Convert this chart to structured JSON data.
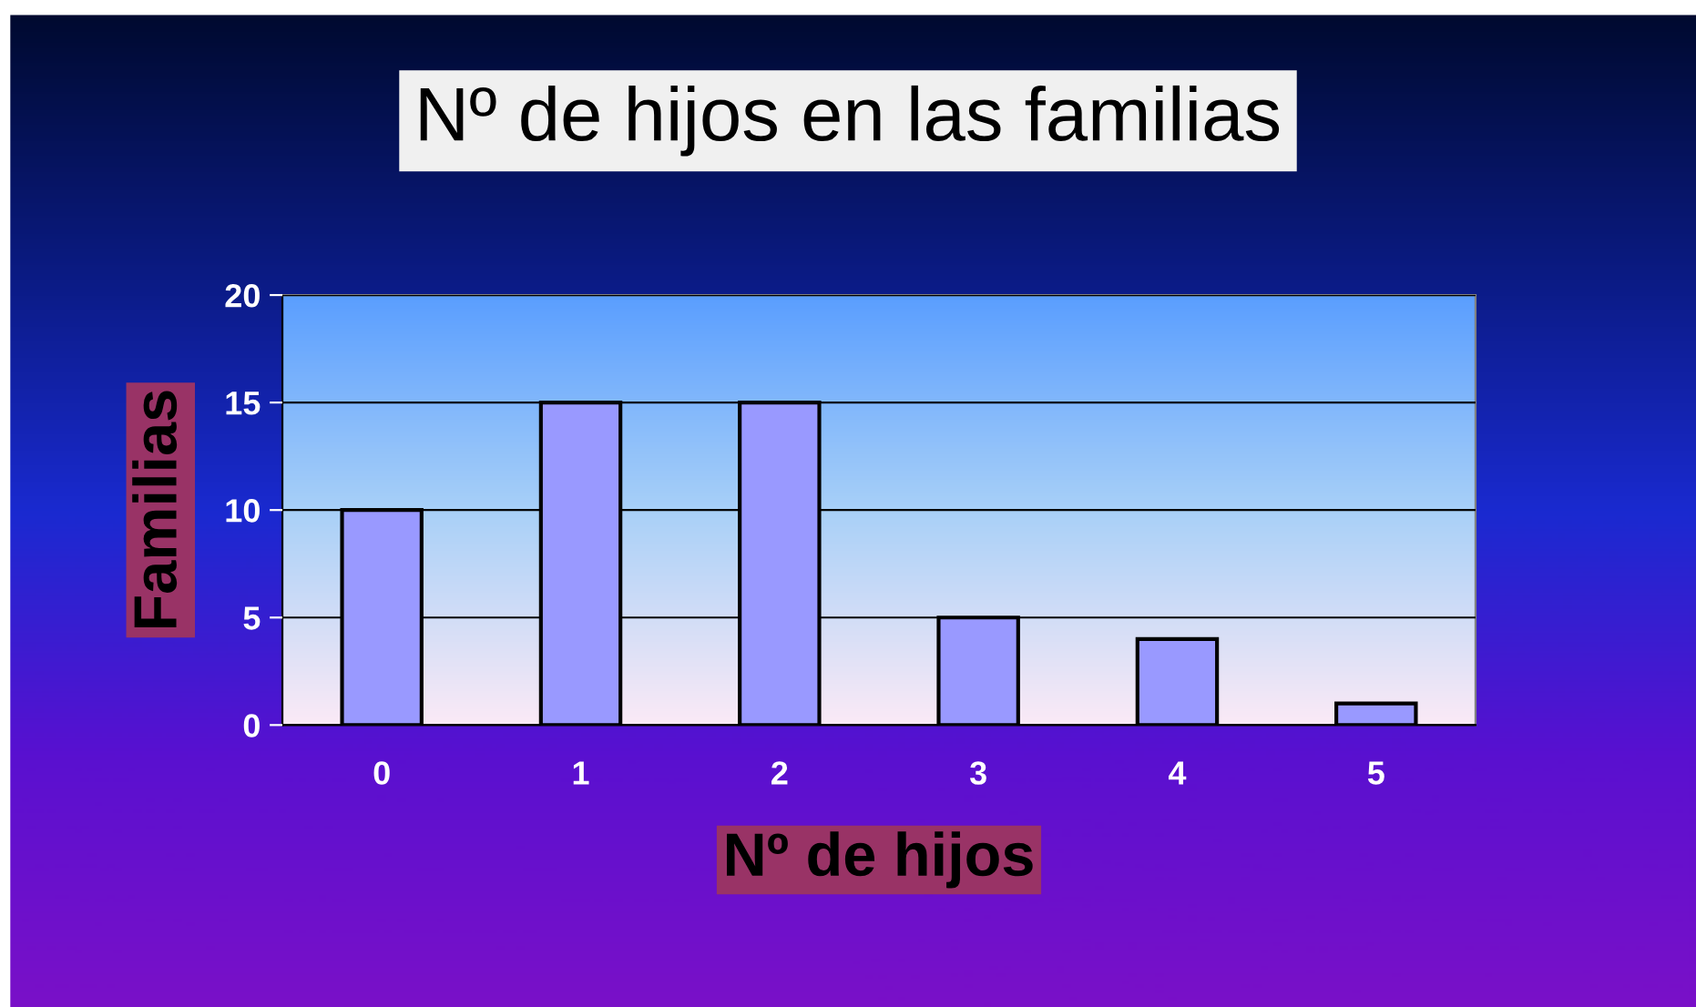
{
  "chart_data": {
    "type": "bar",
    "title": "Nº de hijos en las familias",
    "xlabel": "Nº de hijos",
    "ylabel": "Familias",
    "categories": [
      "0",
      "1",
      "2",
      "3",
      "4",
      "5"
    ],
    "values": [
      10,
      15,
      15,
      5,
      4,
      1
    ],
    "color": "#9999ff",
    "ylim": [
      0,
      20
    ],
    "yticks": [
      0,
      5,
      10,
      15,
      20
    ],
    "grid": "y"
  }
}
